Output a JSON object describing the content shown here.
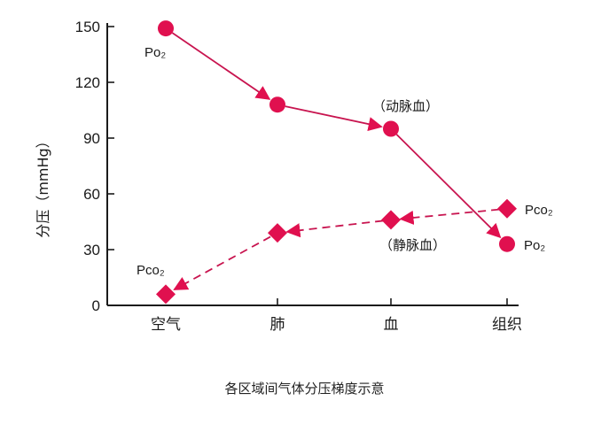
{
  "chart_data": {
    "type": "line",
    "title": "各区域间气体分压梯度示意",
    "xlabel": "",
    "ylabel": "分压（mmHg）",
    "categories": [
      "空气",
      "肺",
      "血",
      "组织"
    ],
    "ylim": [
      0,
      150
    ],
    "yticks": [
      0,
      30,
      60,
      90,
      120,
      150
    ],
    "grid": false,
    "series": [
      {
        "name": "Po2",
        "label": "Po₂",
        "marker": "circle",
        "line": "solid",
        "values": [
          149,
          108,
          95,
          33
        ]
      },
      {
        "name": "Pco2",
        "label": "Pco₂",
        "marker": "diamond",
        "line": "dashed",
        "values": [
          6,
          39,
          46,
          52
        ]
      }
    ],
    "annotations": [
      {
        "text": "（动脉血）",
        "near": "Po2 at 血"
      },
      {
        "text": "（静脉血）",
        "near": "Pco2 at 血"
      }
    ],
    "colors": {
      "marker": "#e0104f",
      "line": "#c8144f",
      "axis": "#1a1a1a"
    }
  },
  "labels": {
    "po2_start": "Po₂",
    "po2_end": "Po₂",
    "pco2_start": "Pco₂",
    "pco2_end": "Pco₂",
    "arterial": "（动脉血）",
    "venous": "（静脉血）",
    "ylabel": "分压（mmHg）",
    "caption": "各区域间气体分压梯度示意"
  }
}
